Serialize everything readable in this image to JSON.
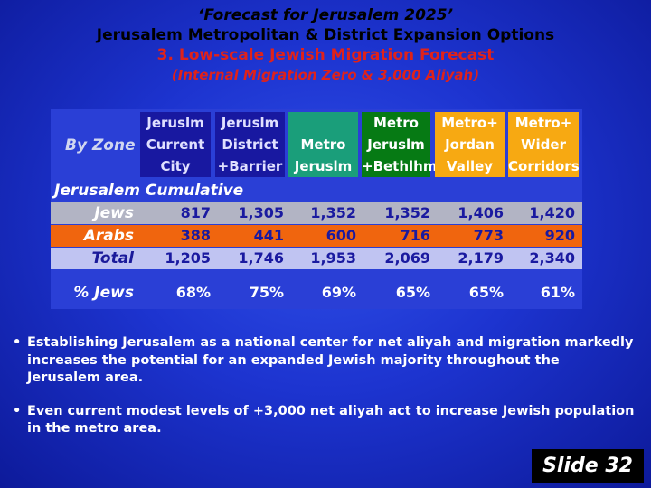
{
  "title": {
    "line1": "‘Forecast for Jerusalem 2025’",
    "line2": "Jerusalem Metropolitan & District Expansion Options",
    "line3": "3. Low-scale Jewish Migration Forecast",
    "line4": "(Internal Migration Zero & 3,000 Aliyah)"
  },
  "table": {
    "by_zone_label": "By Zone",
    "columns": [
      {
        "lines": [
          "Jeruslm",
          "Current",
          "City"
        ],
        "color": "#1818a0"
      },
      {
        "lines": [
          "Jeruslm",
          "District",
          "+Barrier"
        ],
        "color": "#1818a0"
      },
      {
        "lines": [
          "",
          "Metro",
          "Jeruslm"
        ],
        "color": "#1a9e7a"
      },
      {
        "lines": [
          "Metro",
          "Jeruslm",
          "+Bethlhm"
        ],
        "color": "#067a14"
      },
      {
        "lines": [
          "Metro+",
          "Jordan",
          "Valley"
        ],
        "color": "#f7a912"
      },
      {
        "lines": [
          "Metro+",
          "Wider",
          "Corridors"
        ],
        "color": "#f7a912"
      }
    ],
    "section_label": "Jerusalem Cumulative",
    "rows": [
      {
        "label": "Jews",
        "values": [
          "817",
          "1,305",
          "1,352",
          "1,352",
          "1,406",
          "1,420"
        ]
      },
      {
        "label": "Arabs",
        "values": [
          "388",
          "441",
          "600",
          "716",
          "773",
          "920"
        ]
      },
      {
        "label": "Total",
        "values": [
          "1,205",
          "1,746",
          "1,953",
          "2,069",
          "2,179",
          "2,340"
        ]
      }
    ],
    "pct_row": {
      "label": "% Jews",
      "values": [
        "68%",
        "75%",
        "69%",
        "65%",
        "65%",
        "61%"
      ]
    }
  },
  "bullets": [
    "Establishing Jerusalem as a national center for net aliyah and migration markedly increases the potential for an expanded Jewish majority throughout the Jerusalem area.",
    "Even current modest levels of +3,000 net aliyah act to increase Jewish population in the metro area."
  ],
  "bullet_symbol": "•",
  "slide_label": "Slide 32"
}
